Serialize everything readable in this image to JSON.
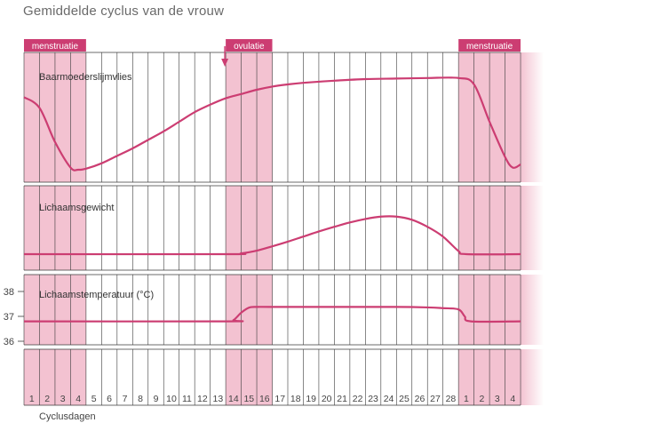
{
  "title": "Gemiddelde cyclus van de vrouw",
  "colors": {
    "accent": "#cc3d72",
    "band": "#f3c2d1",
    "band_edge": "#e8a3b7",
    "grid": "#3a3a3a",
    "tick_text": "#444444"
  },
  "chart_data": {
    "type": "line",
    "title": "Gemiddelde cyclus van de vrouw",
    "xlabel": "Cyclusdagen",
    "categories": [
      "1",
      "2",
      "3",
      "4",
      "5",
      "6",
      "7",
      "8",
      "9",
      "10",
      "11",
      "12",
      "13",
      "14",
      "15",
      "16",
      "17",
      "18",
      "19",
      "20",
      "21",
      "22",
      "23",
      "24",
      "25",
      "26",
      "27",
      "28",
      "1",
      "2",
      "3",
      "4"
    ],
    "phase_labels": [
      {
        "text": "menstruatie",
        "days": [
          1,
          4
        ]
      },
      {
        "text": "ovulatie",
        "days": [
          14,
          16
        ]
      },
      {
        "text": "menstruatie",
        "days": [
          29,
          32
        ]
      }
    ],
    "panels": [
      {
        "label": "Baarmoederslijmvlies",
        "series": [
          {
            "name": "Baarmoederslijmvlies",
            "x": [
              0,
              1,
              2,
              3,
              3.5,
              4,
              5,
              6,
              7,
              8,
              9,
              10,
              11,
              12,
              13,
              14,
              15,
              16,
              17,
              18,
              20,
              22,
              24,
              26,
              28,
              29,
              30,
              31,
              31.5,
              32
            ],
            "y": [
              0.78,
              0.68,
              0.36,
              0.12,
              0.1,
              0.11,
              0.16,
              0.23,
              0.3,
              0.38,
              0.46,
              0.55,
              0.64,
              0.71,
              0.77,
              0.81,
              0.85,
              0.88,
              0.9,
              0.915,
              0.935,
              0.95,
              0.955,
              0.96,
              0.96,
              0.9,
              0.55,
              0.22,
              0.12,
              0.15
            ]
          }
        ]
      },
      {
        "label": "Lichaamsgewicht",
        "series": [
          {
            "name": "Lichaamsgewicht",
            "x": [
              0,
              13,
              14,
              15,
              16,
              17,
              18,
              19,
              20,
              21,
              22,
              23,
              24,
              25,
              26,
              27,
              28,
              28.5,
              32
            ],
            "y": [
              0.0,
              0.0,
              0.02,
              0.09,
              0.2,
              0.32,
              0.45,
              0.58,
              0.7,
              0.81,
              0.9,
              0.96,
              0.96,
              0.88,
              0.7,
              0.45,
              0.08,
              0.0,
              0.0
            ]
          }
        ]
      },
      {
        "label": "Lichaamstemperatuur (°C)",
        "y_ticks": [
          "38",
          "37",
          "36"
        ],
        "ylim": [
          36,
          38
        ],
        "series": [
          {
            "name": "Lichaamstemperatuur (°C)",
            "x": [
              0,
              13,
              13.5,
              14,
              14.5,
              15,
              16,
              20,
              24,
              26,
              27,
              28,
              28.4,
              28.8,
              32
            ],
            "y": [
              36.8,
              36.8,
              36.85,
              37.15,
              37.35,
              37.38,
              37.38,
              37.38,
              37.38,
              37.36,
              37.33,
              37.28,
              37.0,
              36.8,
              36.8
            ]
          }
        ]
      }
    ]
  }
}
